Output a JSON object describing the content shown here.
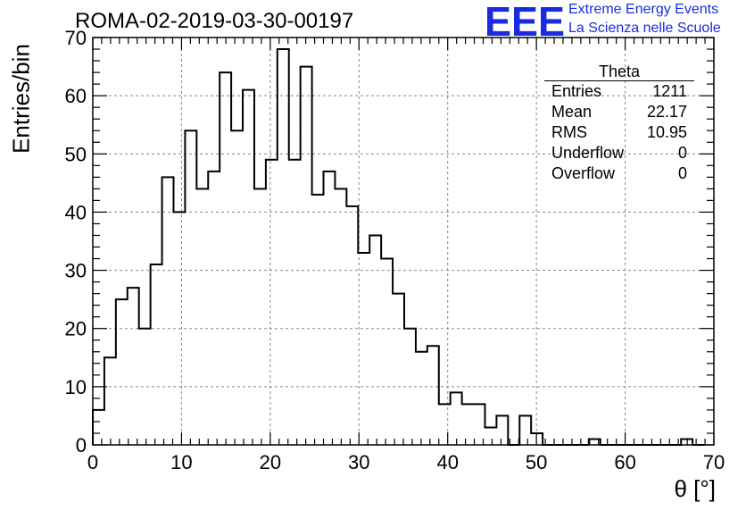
{
  "header": {
    "title": "ROMA-02-2019-03-30-00197",
    "logo_text": "EEE",
    "logo_line1": "Extreme Energy Events",
    "logo_line2": "La Scienza nelle Scuole"
  },
  "stats": {
    "title": "Theta",
    "rows": [
      {
        "label": "Entries",
        "value": "1211"
      },
      {
        "label": "Mean",
        "value": "22.17"
      },
      {
        "label": "RMS",
        "value": "10.95"
      },
      {
        "label": "Underflow",
        "value": "0"
      },
      {
        "label": "Overflow",
        "value": "0"
      }
    ]
  },
  "colors": {
    "logo": "#1a2bdf",
    "line": "#000000",
    "grid": "#888888"
  },
  "chart_data": {
    "type": "bar",
    "histogram": true,
    "xlabel": "θ [°]",
    "ylabel": "Entries/bin",
    "xlim": [
      0,
      70
    ],
    "ylim": [
      0,
      70
    ],
    "xticks": [
      0,
      10,
      20,
      30,
      40,
      50,
      60,
      70
    ],
    "yticks": [
      0,
      10,
      20,
      30,
      40,
      50,
      60,
      70
    ],
    "grid": true,
    "bin_width": 1.3,
    "values": [
      6,
      15,
      25,
      27,
      20,
      31,
      46,
      40,
      54,
      44,
      47,
      64,
      54,
      61,
      44,
      49,
      68,
      49,
      65,
      43,
      47,
      44,
      41,
      33,
      36,
      32,
      26,
      20,
      16,
      17,
      7,
      9,
      7,
      7,
      3,
      5,
      0,
      5,
      2,
      0,
      0,
      0,
      0,
      1,
      0,
      0,
      0,
      0,
      0,
      0,
      0,
      1,
      0
    ]
  }
}
